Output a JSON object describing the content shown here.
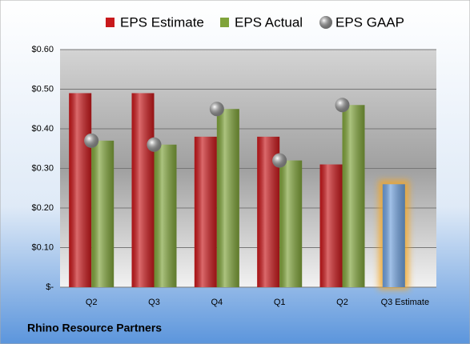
{
  "chart_data": {
    "type": "bar",
    "title": "Rhino Resource Partners",
    "categories": [
      "Q2",
      "Q3",
      "Q4",
      "Q1",
      "Q2",
      "Q3 Estimate"
    ],
    "series": [
      {
        "name": "EPS Estimate",
        "color": "#c8191c",
        "values": [
          0.49,
          0.49,
          0.38,
          0.38,
          0.31,
          0.26
        ],
        "highlight_last_color": "#6fa0dc"
      },
      {
        "name": "EPS Actual",
        "color": "#7fa33a",
        "values": [
          0.37,
          0.36,
          0.45,
          0.32,
          0.46,
          null
        ]
      },
      {
        "name": "EPS GAAP",
        "color": "#a9a9a9",
        "marker": "sphere",
        "values": [
          0.37,
          0.36,
          0.45,
          0.32,
          0.46,
          null
        ]
      }
    ],
    "ylim": [
      0,
      0.6
    ],
    "yticks": [
      {
        "value": 0,
        "label": "$-"
      },
      {
        "value": 0.1,
        "label": "$0.10"
      },
      {
        "value": 0.2,
        "label": "$0.20"
      },
      {
        "value": 0.3,
        "label": "$0.30"
      },
      {
        "value": 0.4,
        "label": "$0.40"
      },
      {
        "value": 0.5,
        "label": "$0.50"
      },
      {
        "value": 0.6,
        "label": "$0.60"
      }
    ],
    "grid": true,
    "legend": "top"
  }
}
